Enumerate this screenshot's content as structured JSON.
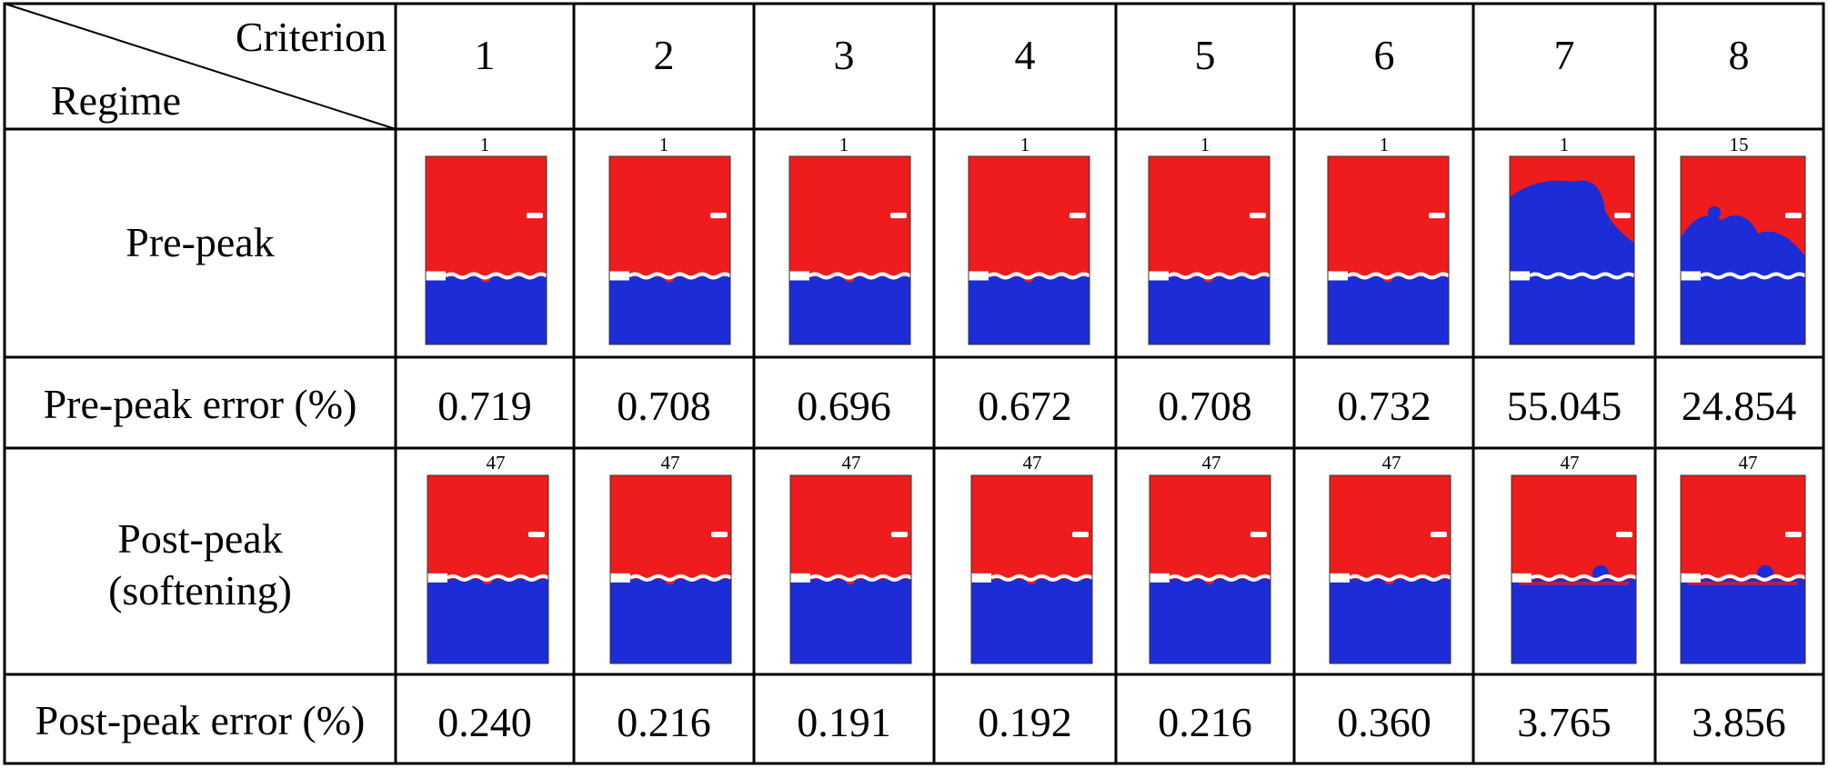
{
  "header": {
    "criterion_label": "Criterion",
    "regime_label": "Regime",
    "criteria": [
      "1",
      "2",
      "3",
      "4",
      "5",
      "6",
      "7",
      "8"
    ]
  },
  "rows": {
    "pre_peak": {
      "label": "Pre-peak",
      "step_labels": [
        "1",
        "1",
        "1",
        "1",
        "1",
        "1",
        "1",
        "15"
      ]
    },
    "pre_peak_error": {
      "label": "Pre-peak error (%)",
      "values": [
        "0.719",
        "0.708",
        "0.696",
        "0.672",
        "0.708",
        "0.732",
        "55.045",
        "24.854"
      ]
    },
    "post_peak": {
      "label_line1": "Post-peak",
      "label_line2": "(softening)",
      "step_labels": [
        "47",
        "47",
        "47",
        "47",
        "47",
        "47",
        "47",
        "47"
      ]
    },
    "post_peak_error": {
      "label": "Post-peak error (%)",
      "values": [
        "0.240",
        "0.216",
        "0.191",
        "0.192",
        "0.216",
        "0.360",
        "3.765",
        "3.856"
      ]
    }
  },
  "colors": {
    "upper_phase": "#ee1c1c",
    "lower_phase": "#1c2cd6",
    "crack": "#ffffff",
    "grid_line": "#000000"
  }
}
